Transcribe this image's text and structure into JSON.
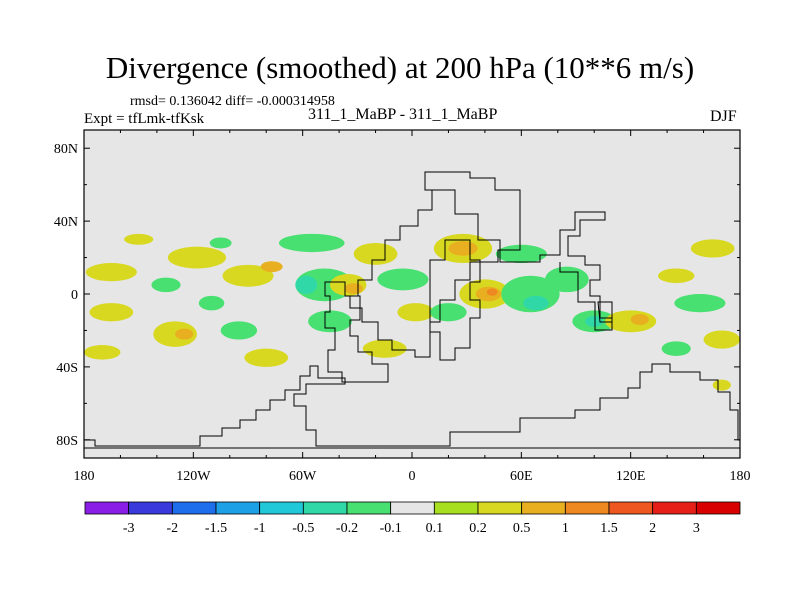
{
  "chart_data": {
    "type": "filled-contour-map",
    "title": "Divergence (smoothed) at 200 hPa (10**6 m/s)",
    "stats_line": "rmsd= 0.136042 diff= -0.000314958",
    "rmsd": 0.136042,
    "diff": -0.000314958,
    "experiment_label": "Expt = tfLmk-tfKsk",
    "subtitle": "311_1_MaBP - 311_1_MaBP",
    "season": "DJF",
    "xaxis": {
      "range": [
        -180,
        180
      ],
      "ticks": [
        -180,
        -120,
        -60,
        0,
        60,
        120,
        180
      ],
      "tick_labels": [
        "180",
        "120W",
        "60W",
        "0",
        "60E",
        "120E",
        "180"
      ]
    },
    "yaxis": {
      "range": [
        -90,
        90
      ],
      "ticks": [
        80,
        40,
        0,
        -40,
        -80
      ],
      "tick_labels": [
        "80N",
        "40N",
        "0",
        "40S",
        "80S"
      ]
    },
    "colorbar": {
      "levels": [
        -3,
        -2,
        -1.5,
        -1,
        -0.5,
        -0.2,
        -0.1,
        0.1,
        0.2,
        0.5,
        1,
        1.5,
        2,
        3
      ],
      "level_labels": [
        "-3",
        "-2",
        "-1.5",
        "-1",
        "-0.5",
        "-0.2",
        "-0.1",
        "0.1",
        "0.2",
        "0.5",
        "1",
        "1.5",
        "2",
        "3"
      ],
      "colors": [
        "#8a1ee6",
        "#3a3adc",
        "#1e6eeb",
        "#1ea0e6",
        "#20c8d8",
        "#30d8a8",
        "#48e070",
        "#e6e6e6",
        "#a8de20",
        "#d8d820",
        "#e8b020",
        "#ee8820",
        "#ee5820",
        "#e62018",
        "#d80000"
      ]
    },
    "regions": [
      {
        "lon": -165,
        "lat": 12,
        "rlon": 14,
        "rlat": 5,
        "value": 0.2
      },
      {
        "lon": -165,
        "lat": -10,
        "rlon": 12,
        "rlat": 5,
        "value": 0.2
      },
      {
        "lon": -170,
        "lat": -32,
        "rlon": 10,
        "rlat": 4,
        "value": 0.2
      },
      {
        "lon": -150,
        "lat": 30,
        "rlon": 8,
        "rlat": 3,
        "value": 0.2
      },
      {
        "lon": -130,
        "lat": -22,
        "rlon": 12,
        "rlat": 7,
        "value": 0.2
      },
      {
        "lon": -125,
        "lat": -22,
        "rlon": 5,
        "rlat": 3,
        "value": 0.5
      },
      {
        "lon": -135,
        "lat": 5,
        "rlon": 8,
        "rlat": 4,
        "value": -0.2
      },
      {
        "lon": -118,
        "lat": 20,
        "rlon": 16,
        "rlat": 6,
        "value": 0.2
      },
      {
        "lon": -105,
        "lat": 28,
        "rlon": 6,
        "rlat": 3,
        "value": -0.2
      },
      {
        "lon": -110,
        "lat": -5,
        "rlon": 7,
        "rlat": 4,
        "value": -0.2
      },
      {
        "lon": -95,
        "lat": -20,
        "rlon": 10,
        "rlat": 5,
        "value": -0.2
      },
      {
        "lon": -90,
        "lat": 10,
        "rlon": 14,
        "rlat": 6,
        "value": 0.2
      },
      {
        "lon": -77,
        "lat": 15,
        "rlon": 6,
        "rlat": 3,
        "value": 0.5
      },
      {
        "lon": -80,
        "lat": -35,
        "rlon": 12,
        "rlat": 5,
        "value": 0.2
      },
      {
        "lon": -55,
        "lat": 28,
        "rlon": 18,
        "rlat": 5,
        "value": -0.2
      },
      {
        "lon": -48,
        "lat": 5,
        "rlon": 16,
        "rlat": 9,
        "value": -0.2
      },
      {
        "lon": -58,
        "lat": 5,
        "rlon": 6,
        "rlat": 5,
        "value": -0.5
      },
      {
        "lon": -35,
        "lat": 5,
        "rlon": 10,
        "rlat": 6,
        "value": 0.2
      },
      {
        "lon": -32,
        "lat": 3,
        "rlon": 5,
        "rlat": 3,
        "value": 0.5
      },
      {
        "lon": -45,
        "lat": -15,
        "rlon": 12,
        "rlat": 6,
        "value": -0.2
      },
      {
        "lon": -20,
        "lat": 22,
        "rlon": 12,
        "rlat": 6,
        "value": 0.2
      },
      {
        "lon": -5,
        "lat": 8,
        "rlon": 14,
        "rlat": 6,
        "value": -0.2
      },
      {
        "lon": 2,
        "lat": -10,
        "rlon": 10,
        "rlat": 5,
        "value": 0.2
      },
      {
        "lon": -15,
        "lat": -30,
        "rlon": 12,
        "rlat": 5,
        "value": 0.2
      },
      {
        "lon": 28,
        "lat": 25,
        "rlon": 16,
        "rlat": 8,
        "value": 0.2
      },
      {
        "lon": 28,
        "lat": 25,
        "rlon": 8,
        "rlat": 4,
        "value": 0.5
      },
      {
        "lon": 40,
        "lat": 0,
        "rlon": 14,
        "rlat": 8,
        "value": 0.2
      },
      {
        "lon": 42,
        "lat": 0,
        "rlon": 7,
        "rlat": 4,
        "value": 0.5
      },
      {
        "lon": 44,
        "lat": 1,
        "rlon": 3,
        "rlat": 2,
        "value": 1
      },
      {
        "lon": 20,
        "lat": -10,
        "rlon": 10,
        "rlat": 5,
        "value": -0.2
      },
      {
        "lon": 60,
        "lat": 22,
        "rlon": 14,
        "rlat": 5,
        "value": -0.2
      },
      {
        "lon": 65,
        "lat": 0,
        "rlon": 16,
        "rlat": 10,
        "value": -0.2
      },
      {
        "lon": 68,
        "lat": -5,
        "rlon": 7,
        "rlat": 4,
        "value": -0.5
      },
      {
        "lon": 85,
        "lat": 8,
        "rlon": 12,
        "rlat": 7,
        "value": -0.2
      },
      {
        "lon": 100,
        "lat": -15,
        "rlon": 12,
        "rlat": 6,
        "value": -0.2
      },
      {
        "lon": 100,
        "lat": -15,
        "rlon": 5,
        "rlat": 3,
        "value": -0.5
      },
      {
        "lon": 120,
        "lat": -15,
        "rlon": 14,
        "rlat": 6,
        "value": 0.2
      },
      {
        "lon": 125,
        "lat": -14,
        "rlon": 5,
        "rlat": 3,
        "value": 0.5
      },
      {
        "lon": 145,
        "lat": 10,
        "rlon": 10,
        "rlat": 4,
        "value": 0.2
      },
      {
        "lon": 158,
        "lat": -5,
        "rlon": 14,
        "rlat": 5,
        "value": -0.2
      },
      {
        "lon": 165,
        "lat": 25,
        "rlon": 12,
        "rlat": 5,
        "value": 0.2
      },
      {
        "lon": 170,
        "lat": -25,
        "rlon": 10,
        "rlat": 5,
        "value": 0.2
      },
      {
        "lon": 145,
        "lat": -30,
        "rlon": 8,
        "rlat": 4,
        "value": -0.2
      },
      {
        "lon": 170,
        "lat": -50,
        "rlon": 5,
        "rlat": 3,
        "value": 0.2
      }
    ]
  }
}
